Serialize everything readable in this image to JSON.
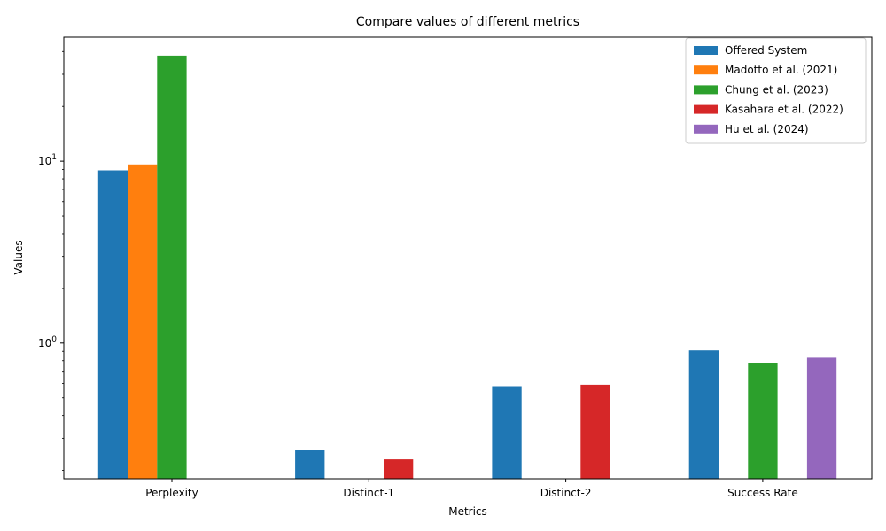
{
  "chart_data": {
    "type": "bar",
    "title": "Compare values of different metrics",
    "xlabel": "Metrics",
    "ylabel": "Values",
    "yscale": "log",
    "ylim": [
      0.18,
      48
    ],
    "y_ticks": [
      {
        "value": 1,
        "label": "10^0"
      },
      {
        "value": 10,
        "label": "10^1"
      }
    ],
    "grid": false,
    "legend_position": "top-right",
    "categories": [
      "Perplexity",
      "Distinct-1",
      "Distinct-2",
      "Success Rate"
    ],
    "series": [
      {
        "name": "Offered System",
        "color": "#1f77b4",
        "values": [
          8.9,
          0.26,
          0.58,
          0.91
        ]
      },
      {
        "name": "Madotto et al. (2021)",
        "color": "#ff7f0e",
        "values": [
          9.6,
          null,
          null,
          null
        ]
      },
      {
        "name": "Chung et al. (2023)",
        "color": "#2ca02c",
        "values": [
          38.0,
          null,
          null,
          0.78
        ]
      },
      {
        "name": "Kasahara et al. (2022)",
        "color": "#d62728",
        "values": [
          null,
          0.23,
          0.59,
          null
        ]
      },
      {
        "name": "Hu et al. (2024)",
        "color": "#9467bd",
        "values": [
          null,
          null,
          null,
          0.84
        ]
      }
    ]
  }
}
